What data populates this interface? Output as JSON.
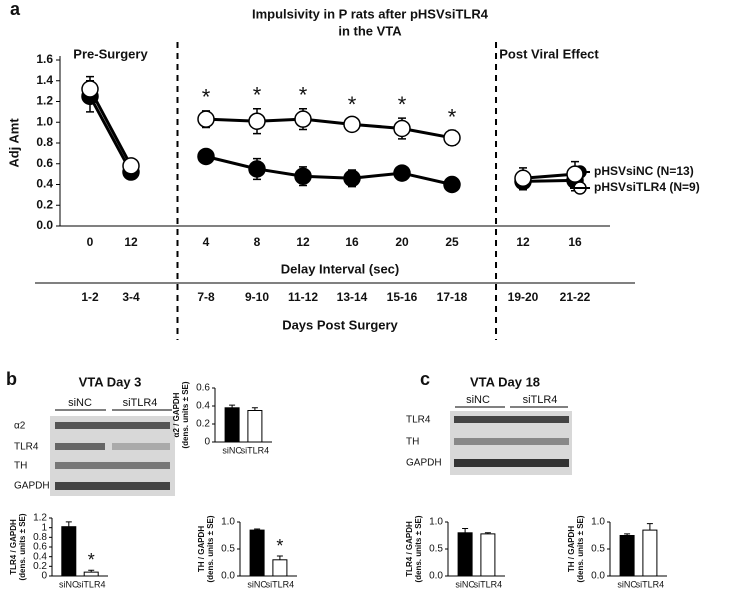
{
  "panel_labels": [
    "a",
    "b",
    "c"
  ],
  "blots": [
    {
      "title": "VTA Day 3",
      "lanes": [
        "siNC",
        "siTLR4"
      ],
      "rows": [
        "α2",
        "TLR4",
        "TH",
        "GAPDH"
      ]
    },
    {
      "title": "VTA Day 18",
      "lanes": [
        "siNC",
        "siTLR4"
      ],
      "rows": [
        "TLR4",
        "TH",
        "GAPDH"
      ]
    }
  ],
  "chart_data": [
    {
      "type": "line",
      "title": [
        "Impulsivity in P rats after pHSVsiTLR4",
        "in the VTA"
      ],
      "ylabel": "Adj Amt",
      "xlabel": "Delay Interval (sec)",
      "x2label": "Days Post Surgery",
      "categories": [
        "0",
        "12",
        "4",
        "8",
        "12",
        "16",
        "20",
        "25",
        "12",
        "16"
      ],
      "days": [
        "1-2",
        "3-4",
        "7-8",
        "9-10",
        "11-12",
        "13-14",
        "15-16",
        "17-18",
        "19-20",
        "21-22"
      ],
      "sections": [
        {
          "title": "Pre-Surgery",
          "size": 2
        },
        {
          "size": 6
        },
        {
          "title": "Post Viral Effect",
          "size": 2
        }
      ],
      "series": [
        {
          "name": "pHSVsiNC (N=13)",
          "color": "#000000",
          "fill": "#000000",
          "values": [
            1.25,
            0.52,
            0.67,
            0.55,
            0.48,
            0.46,
            0.51,
            0.4,
            0.43,
            0.44
          ],
          "errors": [
            0.15,
            0.06,
            0.05,
            0.1,
            0.09,
            0.08,
            0.05,
            0.05,
            0.08,
            0.1
          ]
        },
        {
          "name": "pHSVsiTLR4 (N=9)",
          "color": "#000000",
          "fill": "#ffffff",
          "values": [
            1.32,
            0.58,
            1.03,
            1.01,
            1.03,
            0.98,
            0.94,
            0.85,
            0.46,
            0.5
          ],
          "errors": [
            0.12,
            0.05,
            0.08,
            0.12,
            0.1,
            0.06,
            0.1,
            0.07,
            0.1,
            0.12
          ]
        }
      ],
      "significance": [
        null,
        null,
        "*",
        "*",
        "*",
        "*",
        "*",
        "*",
        null,
        null
      ],
      "ylim": [
        0,
        1.6
      ],
      "yticks": [
        {
          "value": 0,
          "label": "0.0"
        },
        {
          "value": 0.2,
          "label": "0.2"
        },
        {
          "value": 0.4,
          "label": "0.4"
        },
        {
          "value": 0.6,
          "label": "0.6"
        },
        {
          "value": 0.8,
          "label": "0.8"
        },
        {
          "value": 1,
          "label": "1.0"
        },
        {
          "value": 1.2,
          "label": "1.2"
        },
        {
          "value": 1.4,
          "label": "1.4"
        },
        {
          "value": 1.6,
          "label": "1.6"
        }
      ],
      "legend": "right"
    },
    {
      "type": "bar",
      "ylabel": [
        "α2 / GAPDH",
        "(dens. units ± SE)"
      ],
      "categories": [
        "siNC",
        "siTLR4"
      ],
      "values": [
        0.38,
        0.35
      ],
      "errors": [
        0.03,
        0.03
      ],
      "colors": [
        "#000000",
        "#ffffff"
      ],
      "significance": [
        null,
        null
      ],
      "ylim": [
        0,
        0.6
      ],
      "yticks": [
        0,
        0.2,
        0.4,
        0.6
      ]
    },
    {
      "type": "bar",
      "ylabel": [
        "TLR4 / GAPDH",
        "(dens. units ± SE)"
      ],
      "categories": [
        "siNC",
        "siTLR4"
      ],
      "values": [
        1.02,
        0.08
      ],
      "errors": [
        0.1,
        0.04
      ],
      "colors": [
        "#000000",
        "#ffffff"
      ],
      "significance": [
        null,
        "*"
      ],
      "ylim": [
        0,
        1.2
      ],
      "yticks": [
        0,
        0.2,
        0.4,
        0.6,
        0.8,
        1,
        1.2
      ]
    },
    {
      "type": "bar",
      "ylabel": [
        "TH / GAPDH",
        "(dens. units ± SE)"
      ],
      "categories": [
        "siNC",
        "siTLR4"
      ],
      "values": [
        0.85,
        0.3
      ],
      "errors": [
        0.02,
        0.07
      ],
      "colors": [
        "#000000",
        "#ffffff"
      ],
      "significance": [
        null,
        "*"
      ],
      "ylim": [
        0,
        1
      ],
      "yticks": [
        {
          "value": 0,
          "label": "0.0"
        },
        {
          "value": 0.5,
          "label": "0.5"
        },
        {
          "value": 1,
          "label": "1.0"
        }
      ]
    },
    {
      "type": "bar",
      "ylabel": [
        "TLR4 / GAPDH",
        "(dens. units ± SE)"
      ],
      "categories": [
        "siNC",
        "siTLR4"
      ],
      "values": [
        0.8,
        0.78
      ],
      "errors": [
        0.08,
        0.02
      ],
      "colors": [
        "#000000",
        "#ffffff"
      ],
      "significance": [
        null,
        null
      ],
      "ylim": [
        0,
        1
      ],
      "yticks": [
        {
          "value": 0,
          "label": "0.0"
        },
        {
          "value": 0.5,
          "label": "0.5"
        },
        {
          "value": 1,
          "label": "1.0"
        }
      ]
    },
    {
      "type": "bar",
      "ylabel": [
        "TH / GAPDH",
        "(dens. units ± SE)"
      ],
      "categories": [
        "siNC",
        "siTLR4"
      ],
      "values": [
        0.75,
        0.85
      ],
      "errors": [
        0.03,
        0.12
      ],
      "colors": [
        "#000000",
        "#ffffff"
      ],
      "significance": [
        null,
        null
      ],
      "ylim": [
        0,
        1
      ],
      "yticks": [
        {
          "value": 0,
          "label": "0.0"
        },
        {
          "value": 0.5,
          "label": "0.5"
        },
        {
          "value": 1,
          "label": "1.0"
        }
      ]
    }
  ]
}
